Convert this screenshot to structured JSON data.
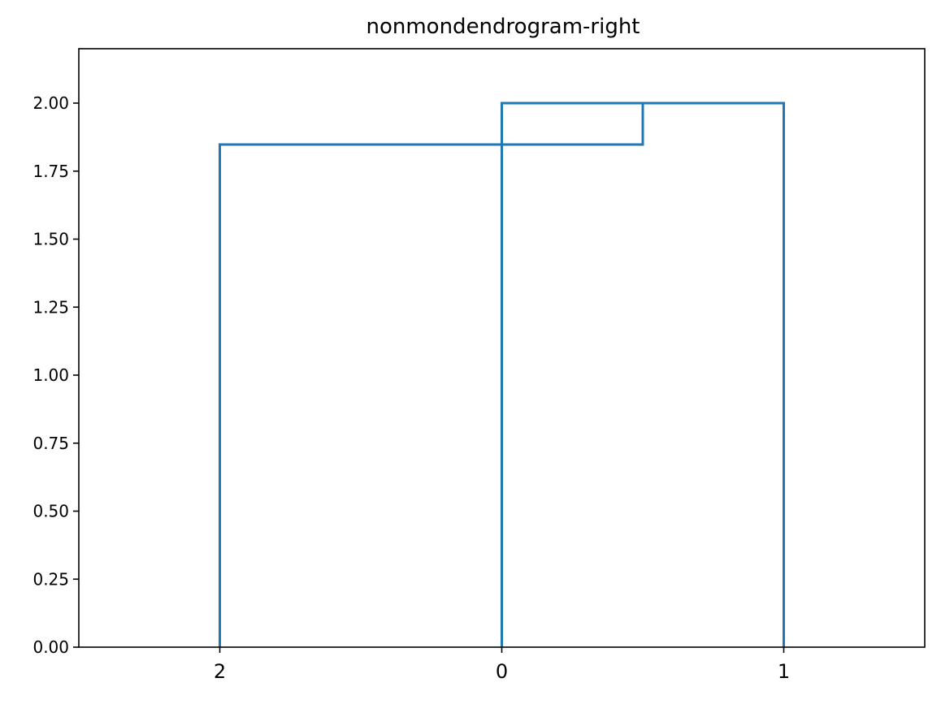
{
  "chart_data": {
    "type": "dendrogram",
    "title": "nonmondendrogram-right",
    "leaves": [
      "2",
      "0",
      "1"
    ],
    "links": [
      {
        "merged": [
          "1",
          "0"
        ],
        "height": 2.0
      },
      {
        "merged": [
          "2",
          "(0,1)"
        ],
        "height": 1.8478
      }
    ],
    "ylim": [
      0,
      2.2
    ],
    "yticks": [
      0.0,
      0.25,
      0.5,
      0.75,
      1.0,
      1.25,
      1.5,
      1.75,
      2.0
    ],
    "ytick_labels": [
      "0.00",
      "0.25",
      "0.50",
      "0.75",
      "1.00",
      "1.25",
      "1.50",
      "1.75",
      "2.00"
    ],
    "color": "#1f77b4",
    "grid": false
  }
}
